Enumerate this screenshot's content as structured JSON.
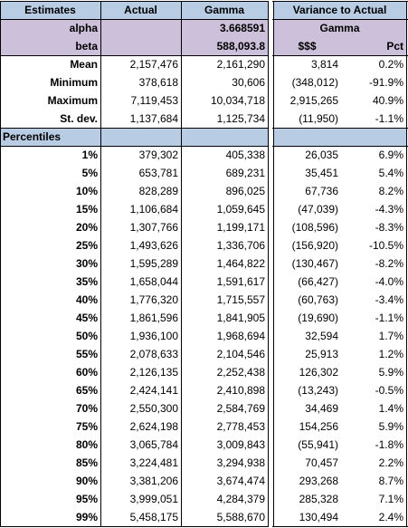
{
  "header": {
    "estimates": "Estimates",
    "actual": "Actual",
    "gamma": "Gamma",
    "variance_title": "Variance to Actual",
    "variance_sub": "Gamma",
    "dollars": "$$$",
    "pct": "Pct"
  },
  "params": [
    {
      "label": "alpha",
      "gamma": "3.668591"
    },
    {
      "label": "beta",
      "gamma": "588,093.8"
    }
  ],
  "stats": [
    {
      "label": "Mean",
      "actual": "2,157,476",
      "gamma": "2,161,290",
      "var": "3,814",
      "pct": "0.2%"
    },
    {
      "label": "Minimum",
      "actual": "378,618",
      "gamma": "30,606",
      "var": "(348,012)",
      "pct": "-91.9%"
    },
    {
      "label": "Maximum",
      "actual": "7,119,453",
      "gamma": "10,034,718",
      "var": "2,915,265",
      "pct": "40.9%"
    },
    {
      "label": "St. dev.",
      "actual": "1,137,684",
      "gamma": "1,125,734",
      "var": "(11,950)",
      "pct": "-1.1%"
    }
  ],
  "percentiles_label": "Percentiles",
  "percentiles": [
    {
      "label": "1%",
      "actual": "379,302",
      "gamma": "405,338",
      "var": "26,035",
      "pct": "6.9%"
    },
    {
      "label": "5%",
      "actual": "653,781",
      "gamma": "689,231",
      "var": "35,451",
      "pct": "5.4%"
    },
    {
      "label": "10%",
      "actual": "828,289",
      "gamma": "896,025",
      "var": "67,736",
      "pct": "8.2%"
    },
    {
      "label": "15%",
      "actual": "1,106,684",
      "gamma": "1,059,645",
      "var": "(47,039)",
      "pct": "-4.3%"
    },
    {
      "label": "20%",
      "actual": "1,307,766",
      "gamma": "1,199,171",
      "var": "(108,596)",
      "pct": "-8.3%"
    },
    {
      "label": "25%",
      "actual": "1,493,626",
      "gamma": "1,336,706",
      "var": "(156,920)",
      "pct": "-10.5%"
    },
    {
      "label": "30%",
      "actual": "1,595,289",
      "gamma": "1,464,822",
      "var": "(130,467)",
      "pct": "-8.2%"
    },
    {
      "label": "35%",
      "actual": "1,658,044",
      "gamma": "1,591,617",
      "var": "(66,427)",
      "pct": "-4.0%"
    },
    {
      "label": "40%",
      "actual": "1,776,320",
      "gamma": "1,715,557",
      "var": "(60,763)",
      "pct": "-3.4%"
    },
    {
      "label": "45%",
      "actual": "1,861,596",
      "gamma": "1,841,905",
      "var": "(19,690)",
      "pct": "-1.1%"
    },
    {
      "label": "50%",
      "actual": "1,936,100",
      "gamma": "1,968,694",
      "var": "32,594",
      "pct": "1.7%"
    },
    {
      "label": "55%",
      "actual": "2,078,633",
      "gamma": "2,104,546",
      "var": "25,913",
      "pct": "1.2%"
    },
    {
      "label": "60%",
      "actual": "2,126,135",
      "gamma": "2,252,438",
      "var": "126,302",
      "pct": "5.9%"
    },
    {
      "label": "65%",
      "actual": "2,424,141",
      "gamma": "2,410,898",
      "var": "(13,243)",
      "pct": "-0.5%"
    },
    {
      "label": "70%",
      "actual": "2,550,300",
      "gamma": "2,584,769",
      "var": "34,469",
      "pct": "1.4%"
    },
    {
      "label": "75%",
      "actual": "2,624,198",
      "gamma": "2,778,453",
      "var": "154,256",
      "pct": "5.9%"
    },
    {
      "label": "80%",
      "actual": "3,065,784",
      "gamma": "3,009,843",
      "var": "(55,941)",
      "pct": "-1.8%"
    },
    {
      "label": "85%",
      "actual": "3,224,481",
      "gamma": "3,294,938",
      "var": "70,457",
      "pct": "2.2%"
    },
    {
      "label": "90%",
      "actual": "3,381,206",
      "gamma": "3,674,474",
      "var": "293,268",
      "pct": "8.7%"
    },
    {
      "label": "95%",
      "actual": "3,999,051",
      "gamma": "4,284,379",
      "var": "285,328",
      "pct": "7.1%"
    },
    {
      "label": "99%",
      "actual": "5,458,175",
      "gamma": "5,588,670",
      "var": "130,494",
      "pct": "2.4%"
    }
  ],
  "colors": {
    "header_fill": "#b8cce4",
    "param_fill": "#ccc0da",
    "grid": "#000000"
  }
}
